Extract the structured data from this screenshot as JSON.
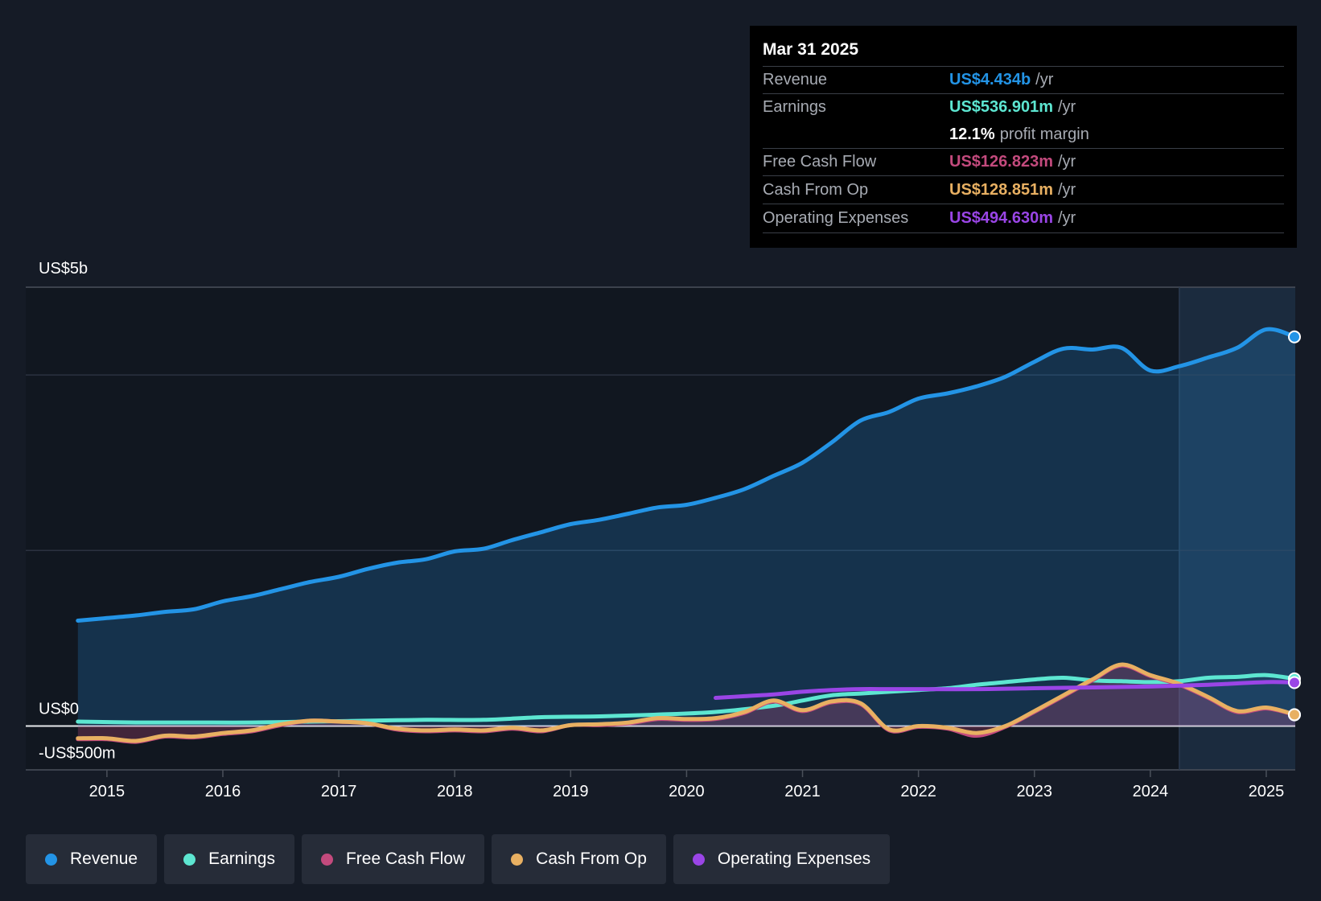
{
  "chart_data": {
    "type": "line",
    "title": "",
    "y_axis_labels": {
      "top": "US$5b",
      "zero": "US$0",
      "bottom": "-US$500m"
    },
    "ylim": [
      -500,
      5000
    ],
    "x_ticks": [
      "2015",
      "2016",
      "2017",
      "2018",
      "2019",
      "2020",
      "2021",
      "2022",
      "2023",
      "2024",
      "2025"
    ],
    "x_range": [
      2014.3,
      2025.25
    ],
    "forecast_boundary": 2024.25,
    "series": [
      {
        "name": "Revenue",
        "color": "#2394e6",
        "area": true,
        "points": [
          [
            2014.75,
            1200
          ],
          [
            2015.0,
            1230
          ],
          [
            2015.25,
            1260
          ],
          [
            2015.5,
            1300
          ],
          [
            2015.75,
            1330
          ],
          [
            2016.0,
            1420
          ],
          [
            2016.25,
            1480
          ],
          [
            2016.5,
            1560
          ],
          [
            2016.75,
            1640
          ],
          [
            2017.0,
            1700
          ],
          [
            2017.25,
            1790
          ],
          [
            2017.5,
            1860
          ],
          [
            2017.75,
            1900
          ],
          [
            2018.0,
            1990
          ],
          [
            2018.25,
            2020
          ],
          [
            2018.5,
            2120
          ],
          [
            2018.75,
            2210
          ],
          [
            2019.0,
            2300
          ],
          [
            2019.25,
            2350
          ],
          [
            2019.5,
            2420
          ],
          [
            2019.75,
            2490
          ],
          [
            2020.0,
            2520
          ],
          [
            2020.25,
            2600
          ],
          [
            2020.5,
            2700
          ],
          [
            2020.75,
            2850
          ],
          [
            2021.0,
            3000
          ],
          [
            2021.25,
            3230
          ],
          [
            2021.5,
            3480
          ],
          [
            2021.75,
            3580
          ],
          [
            2022.0,
            3730
          ],
          [
            2022.25,
            3790
          ],
          [
            2022.5,
            3870
          ],
          [
            2022.75,
            3980
          ],
          [
            2023.0,
            4150
          ],
          [
            2023.25,
            4300
          ],
          [
            2023.5,
            4290
          ],
          [
            2023.75,
            4310
          ],
          [
            2024.0,
            4050
          ],
          [
            2024.25,
            4100
          ],
          [
            2024.5,
            4200
          ],
          [
            2024.75,
            4310
          ],
          [
            2025.0,
            4520
          ],
          [
            2025.25,
            4434
          ]
        ]
      },
      {
        "name": "Earnings",
        "color": "#5de6d1",
        "points": [
          [
            2014.75,
            50
          ],
          [
            2015.25,
            40
          ],
          [
            2015.75,
            40
          ],
          [
            2016.25,
            40
          ],
          [
            2016.75,
            50
          ],
          [
            2017.25,
            60
          ],
          [
            2017.75,
            70
          ],
          [
            2018.25,
            70
          ],
          [
            2018.75,
            100
          ],
          [
            2019.25,
            110
          ],
          [
            2019.75,
            130
          ],
          [
            2020.25,
            160
          ],
          [
            2020.75,
            230
          ],
          [
            2021.0,
            290
          ],
          [
            2021.25,
            350
          ],
          [
            2021.5,
            370
          ],
          [
            2021.75,
            390
          ],
          [
            2022.0,
            410
          ],
          [
            2022.25,
            430
          ],
          [
            2022.5,
            470
          ],
          [
            2022.75,
            500
          ],
          [
            2023.0,
            530
          ],
          [
            2023.25,
            550
          ],
          [
            2023.5,
            520
          ],
          [
            2023.75,
            510
          ],
          [
            2024.0,
            500
          ],
          [
            2024.25,
            510
          ],
          [
            2024.5,
            550
          ],
          [
            2024.75,
            560
          ],
          [
            2025.0,
            580
          ],
          [
            2025.25,
            537
          ]
        ]
      },
      {
        "name": "Free Cash Flow",
        "color": "#c34a7d",
        "area": true,
        "points": [
          [
            2014.75,
            -150
          ],
          [
            2015.0,
            -150
          ],
          [
            2015.25,
            -180
          ],
          [
            2015.5,
            -120
          ],
          [
            2015.75,
            -130
          ],
          [
            2016.0,
            -90
          ],
          [
            2016.25,
            -60
          ],
          [
            2016.5,
            10
          ],
          [
            2016.75,
            60
          ],
          [
            2017.0,
            50
          ],
          [
            2017.25,
            30
          ],
          [
            2017.5,
            -40
          ],
          [
            2017.75,
            -60
          ],
          [
            2018.0,
            -50
          ],
          [
            2018.25,
            -60
          ],
          [
            2018.5,
            -30
          ],
          [
            2018.75,
            -60
          ],
          [
            2019.0,
            10
          ],
          [
            2019.25,
            10
          ],
          [
            2019.5,
            30
          ],
          [
            2019.75,
            80
          ],
          [
            2020.0,
            70
          ],
          [
            2020.25,
            80
          ],
          [
            2020.5,
            150
          ],
          [
            2020.75,
            280
          ],
          [
            2021.0,
            170
          ],
          [
            2021.25,
            270
          ],
          [
            2021.5,
            250
          ],
          [
            2021.75,
            -50
          ],
          [
            2022.0,
            -10
          ],
          [
            2022.25,
            -30
          ],
          [
            2022.5,
            -110
          ],
          [
            2022.75,
            -10
          ],
          [
            2023.0,
            160
          ],
          [
            2023.25,
            340
          ],
          [
            2023.5,
            520
          ],
          [
            2023.75,
            690
          ],
          [
            2024.0,
            570
          ],
          [
            2024.25,
            470
          ],
          [
            2024.5,
            320
          ],
          [
            2024.75,
            160
          ],
          [
            2025.0,
            200
          ],
          [
            2025.25,
            127
          ]
        ]
      },
      {
        "name": "Cash From Op",
        "color": "#e8b062",
        "points": [
          [
            2014.75,
            -140
          ],
          [
            2015.0,
            -140
          ],
          [
            2015.25,
            -170
          ],
          [
            2015.5,
            -110
          ],
          [
            2015.75,
            -120
          ],
          [
            2016.0,
            -80
          ],
          [
            2016.25,
            -50
          ],
          [
            2016.5,
            20
          ],
          [
            2016.75,
            60
          ],
          [
            2017.0,
            50
          ],
          [
            2017.25,
            30
          ],
          [
            2017.5,
            -30
          ],
          [
            2017.75,
            -50
          ],
          [
            2018.0,
            -40
          ],
          [
            2018.25,
            -50
          ],
          [
            2018.5,
            -20
          ],
          [
            2018.75,
            -50
          ],
          [
            2019.0,
            10
          ],
          [
            2019.25,
            20
          ],
          [
            2019.5,
            40
          ],
          [
            2019.75,
            90
          ],
          [
            2020.0,
            80
          ],
          [
            2020.25,
            90
          ],
          [
            2020.5,
            160
          ],
          [
            2020.75,
            290
          ],
          [
            2021.0,
            180
          ],
          [
            2021.25,
            280
          ],
          [
            2021.5,
            260
          ],
          [
            2021.75,
            -40
          ],
          [
            2022.0,
            0
          ],
          [
            2022.25,
            -20
          ],
          [
            2022.5,
            -80
          ],
          [
            2022.75,
            0
          ],
          [
            2023.0,
            170
          ],
          [
            2023.25,
            350
          ],
          [
            2023.5,
            530
          ],
          [
            2023.75,
            700
          ],
          [
            2024.0,
            580
          ],
          [
            2024.25,
            480
          ],
          [
            2024.5,
            330
          ],
          [
            2024.75,
            170
          ],
          [
            2025.0,
            210
          ],
          [
            2025.25,
            129
          ]
        ]
      },
      {
        "name": "Operating Expenses",
        "color": "#9a45e6",
        "points": [
          [
            2020.25,
            320
          ],
          [
            2020.5,
            340
          ],
          [
            2020.75,
            360
          ],
          [
            2021.0,
            390
          ],
          [
            2021.25,
            410
          ],
          [
            2021.5,
            420
          ],
          [
            2021.75,
            420
          ],
          [
            2022.0,
            420
          ],
          [
            2022.5,
            420
          ],
          [
            2023.0,
            430
          ],
          [
            2023.5,
            440
          ],
          [
            2024.0,
            450
          ],
          [
            2024.5,
            470
          ],
          [
            2025.0,
            500
          ],
          [
            2025.25,
            495
          ]
        ]
      }
    ],
    "tooltip": {
      "date": "Mar 31 2025",
      "rows": [
        {
          "label": "Revenue",
          "value": "US$4.434b",
          "unit": "/yr",
          "color": "#2394e6"
        },
        {
          "label": "Earnings",
          "value": "US$536.901m",
          "unit": "/yr",
          "color": "#5de6d1"
        },
        {
          "label": "",
          "value": "12.1%",
          "unit": "profit margin",
          "color": "#ffffff"
        },
        {
          "label": "Free Cash Flow",
          "value": "US$126.823m",
          "unit": "/yr",
          "color": "#c34a7d"
        },
        {
          "label": "Cash From Op",
          "value": "US$128.851m",
          "unit": "/yr",
          "color": "#e8b062"
        },
        {
          "label": "Operating Expenses",
          "value": "US$494.630m",
          "unit": "/yr",
          "color": "#9a45e6"
        }
      ]
    },
    "legend": [
      {
        "name": "Revenue",
        "color": "#2394e6"
      },
      {
        "name": "Earnings",
        "color": "#5de6d1"
      },
      {
        "name": "Free Cash Flow",
        "color": "#c34a7d"
      },
      {
        "name": "Cash From Op",
        "color": "#e8b062"
      },
      {
        "name": "Operating Expenses",
        "color": "#9a45e6"
      }
    ]
  }
}
